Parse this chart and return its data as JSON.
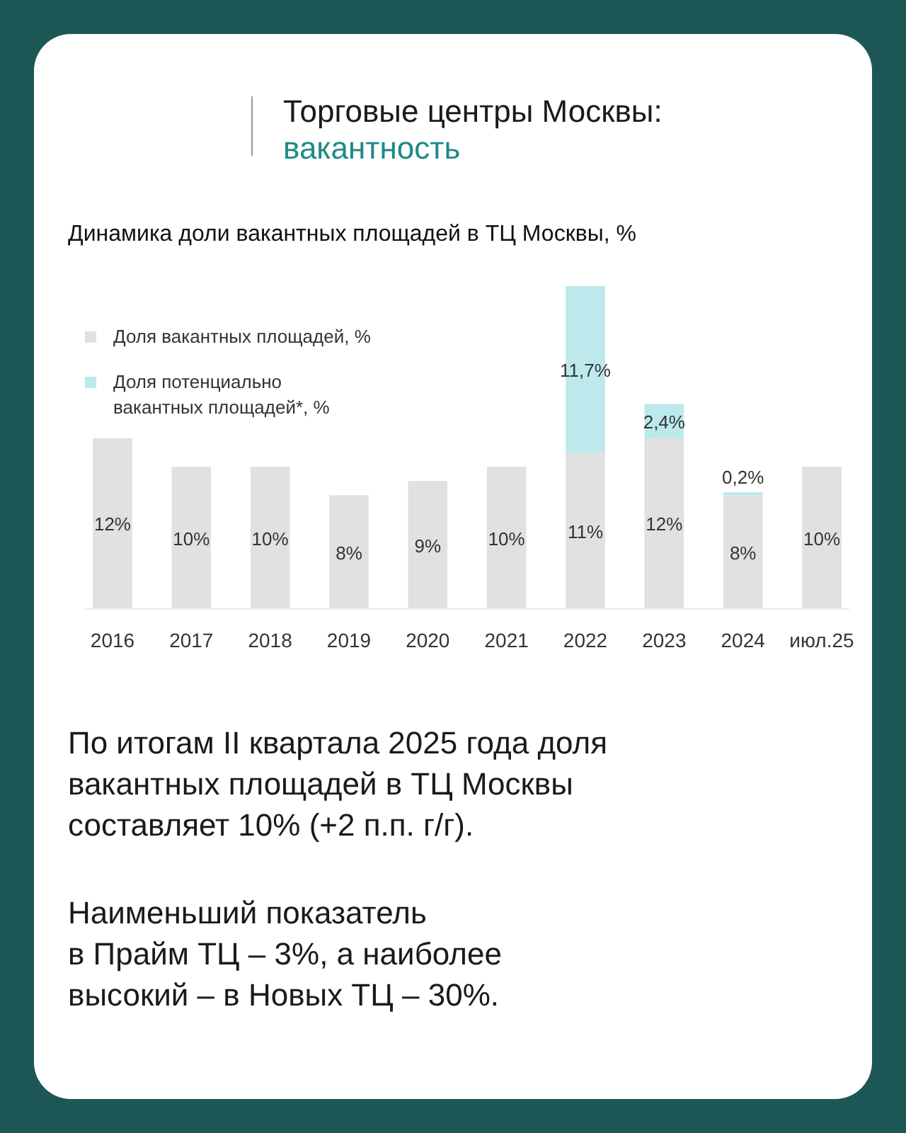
{
  "chart_data": {
    "type": "bar",
    "stacked": true,
    "title": "Торговые центры Москвы:\nвакантность",
    "subtitle": "Динамика доли вакантных площадей в ТЦ Москвы, %",
    "categories": [
      "2016",
      "2017",
      "2018",
      "2019",
      "2020",
      "2021",
      "2022",
      "2023",
      "2024",
      "июл.25"
    ],
    "series": [
      {
        "name": "Доля вакантных площадей, %",
        "color": "#e1e1e1",
        "values": [
          12,
          10,
          10,
          8,
          9,
          10,
          11,
          12,
          8,
          10
        ],
        "value_labels": [
          "12%",
          "10%",
          "10%",
          "8%",
          "9%",
          "10%",
          "11%",
          "12%",
          "8%",
          "10%"
        ]
      },
      {
        "name": "Доля потенциально\nвакантных площадей*, %",
        "color": "#bde9ec",
        "values": [
          null,
          null,
          null,
          null,
          null,
          null,
          11.7,
          2.4,
          0.2,
          null
        ],
        "value_labels": [
          null,
          null,
          null,
          null,
          null,
          null,
          "11,7%",
          "2,4%",
          "0,2%",
          null
        ]
      }
    ],
    "legend": "top left",
    "annotations": [
      "По итогам II квартала 2025 года доля\nвакантных площадей в ТЦ Москвы\nсоставляет 10% (+2 п.п. г/г).",
      "Наименьший показатель\nв Прайм ТЦ – 3%, а наиболее\nвысокий – в Новых ТЦ – 30%."
    ]
  }
}
